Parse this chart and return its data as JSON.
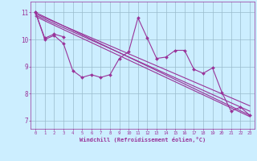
{
  "background_color": "#cceeff",
  "grid_color": "#99bbcc",
  "line_color": "#993399",
  "xlabel": "Windchill (Refroidissement éolien,°C)",
  "ylabel_ticks": [
    7,
    8,
    9,
    10,
    11
  ],
  "xlim": [
    -0.5,
    23.5
  ],
  "ylim": [
    6.7,
    11.4
  ],
  "series": [
    {
      "x": [
        0,
        1,
        2,
        3,
        4,
        5,
        6,
        7,
        8,
        9,
        10,
        11,
        12,
        13,
        14,
        15,
        16,
        17,
        18,
        19,
        20,
        21,
        22,
        23
      ],
      "y": [
        11.0,
        10.0,
        10.15,
        9.85,
        8.85,
        8.6,
        8.7,
        8.6,
        8.7,
        9.3,
        9.55,
        10.8,
        10.05,
        9.3,
        9.35,
        9.6,
        9.6,
        8.9,
        8.75,
        8.95,
        8.05,
        7.35,
        7.5,
        7.2
      ],
      "marker": "D",
      "markersize": 2.0,
      "lw": 0.8
    },
    {
      "x": [
        0,
        1,
        2,
        3
      ],
      "y": [
        11.0,
        10.05,
        10.2,
        10.1
      ],
      "marker": "D",
      "markersize": 2.0,
      "lw": 0.8
    },
    {
      "x": [
        0,
        23
      ],
      "y": [
        11.0,
        7.2
      ],
      "marker": null,
      "markersize": 0,
      "lw": 0.8
    },
    {
      "x": [
        0,
        23
      ],
      "y": [
        10.95,
        7.55
      ],
      "marker": null,
      "markersize": 0,
      "lw": 0.8
    },
    {
      "x": [
        0,
        23
      ],
      "y": [
        10.9,
        7.35
      ],
      "marker": null,
      "markersize": 0,
      "lw": 0.8
    },
    {
      "x": [
        0,
        23
      ],
      "y": [
        10.85,
        7.15
      ],
      "marker": null,
      "markersize": 0,
      "lw": 0.8
    }
  ],
  "hours": [
    0,
    1,
    2,
    3,
    4,
    5,
    6,
    7,
    8,
    9,
    10,
    11,
    12,
    13,
    14,
    15,
    16,
    17,
    18,
    19,
    20,
    21,
    22,
    23
  ]
}
